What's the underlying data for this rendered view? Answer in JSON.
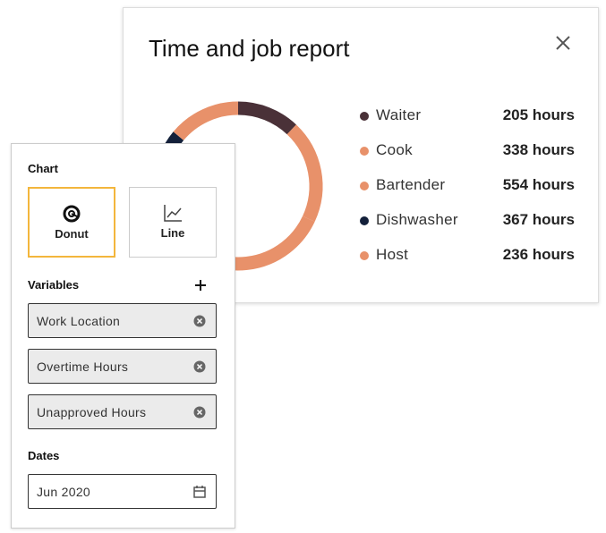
{
  "report": {
    "title": "Time and job report",
    "chart_data": {
      "type": "donut",
      "categories": [
        "Waiter",
        "Cook",
        "Bartender",
        "Dishwasher",
        "Host"
      ],
      "values": [
        205,
        338,
        554,
        367,
        236
      ],
      "value_labels": [
        "205 hours",
        "338 hours",
        "554 hours",
        "367 hours",
        "236 hours"
      ],
      "colors": [
        "#4a3138",
        "#e8916a",
        "#e8916a",
        "#13203a",
        "#e8916a"
      ]
    }
  },
  "panel": {
    "chart_label": "Chart",
    "chart_options": [
      "Donut",
      "Line"
    ],
    "variables_label": "Variables",
    "variables": [
      "Work Location",
      "Overtime Hours",
      "Unapproved Hours"
    ],
    "dates_label": "Dates",
    "date": "Jun 2020"
  }
}
